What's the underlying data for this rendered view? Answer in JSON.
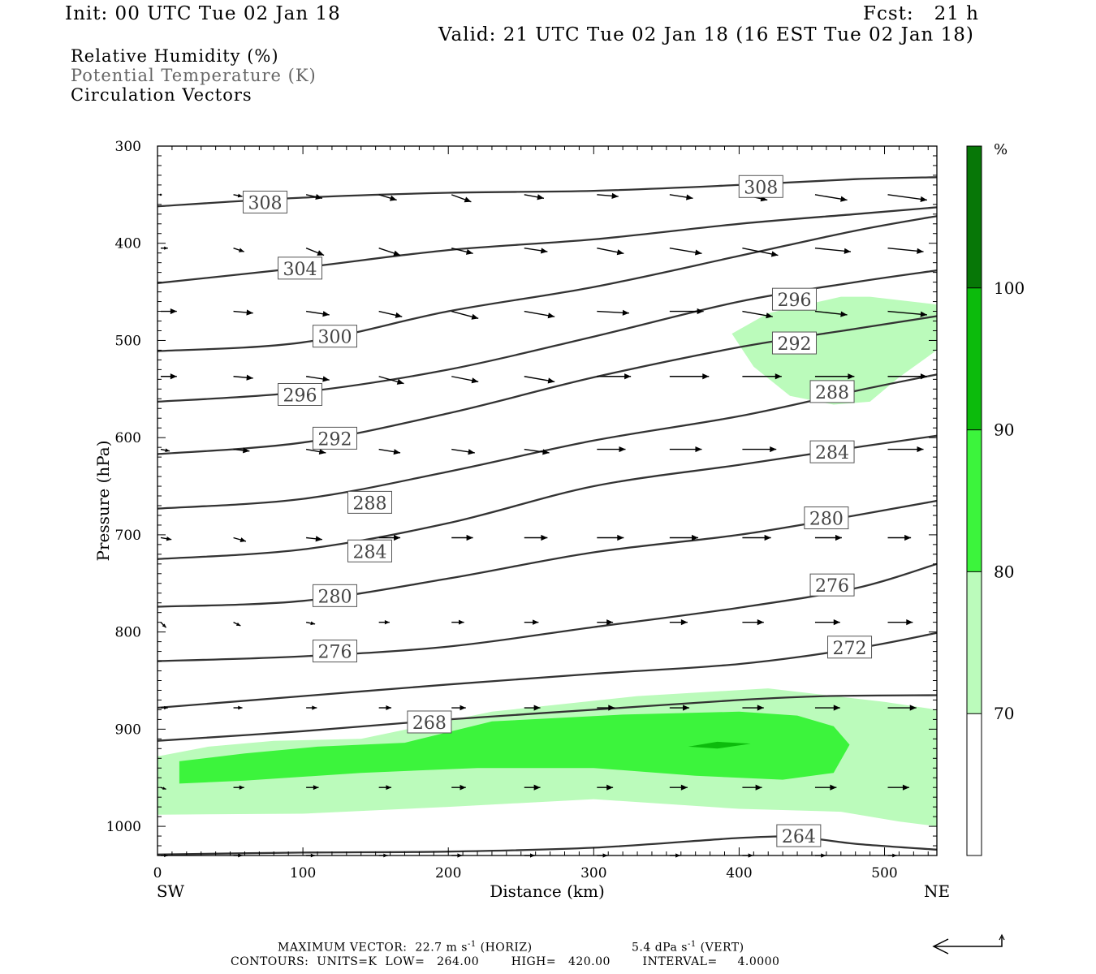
{
  "header": {
    "init": "Init: 00 UTC Tue 02 Jan 18",
    "fcst": "Fcst:   21 h",
    "valid": "Valid: 21 UTC Tue 02 Jan 18 (16 EST Tue 02 Jan 18)"
  },
  "legend": {
    "rh": "Relative Humidity (%)",
    "theta": "Potential Temperature (K)",
    "vectors": "Circulation Vectors"
  },
  "footer": {
    "max_vector_label": "MAXIMUM VECTOR:",
    "horiz_value": "22.7 m s",
    "horiz_label": "(HORIZ)",
    "vert_value": "5.4 dPa s",
    "vert_label": "(VERT)",
    "exp": "-1",
    "contours": "CONTOURS:  UNITS=K  LOW=   264.00        HIGH=   420.00        INTERVAL=     4.0000"
  },
  "colors": {
    "rh70": "#bbfbbb",
    "rh80": "#3cf43c",
    "rh90": "#0cbb0c",
    "rh100": "#077707",
    "contour": "#333333",
    "label_text": "#444444"
  },
  "chart_data": {
    "type": "cross-section",
    "xlabel": "Distance (km)",
    "ylabel": "Pressure (hPa)",
    "xlim": [
      0,
      536
    ],
    "ylim": [
      1030,
      300
    ],
    "x_ticks": [
      0,
      100,
      200,
      300,
      400,
      500
    ],
    "y_ticks": [
      300,
      400,
      500,
      600,
      700,
      800,
      900,
      1000
    ],
    "x_end_labels": {
      "left": "SW",
      "right": "NE"
    },
    "colorbar": {
      "unit": "%",
      "levels": [
        70,
        80,
        90,
        100
      ],
      "colors": [
        "#bbfbbb",
        "#3cf43c",
        "#0cbb0c",
        "#077707"
      ]
    },
    "isentropes": [
      {
        "value": 264,
        "points": [
          [
            0,
            1029
          ],
          [
            100,
            1027
          ],
          [
            200,
            1026
          ],
          [
            300,
            1022
          ],
          [
            400,
            1012
          ],
          [
            440,
            1011
          ],
          [
            480,
            1018
          ],
          [
            536,
            1024
          ]
        ],
        "labels": [
          [
            441,
            1010
          ]
        ]
      },
      {
        "value": 268,
        "points": [
          [
            0,
            912
          ],
          [
            100,
            902
          ],
          [
            200,
            890
          ],
          [
            300,
            880
          ],
          [
            400,
            870
          ],
          [
            460,
            866
          ],
          [
            536,
            865
          ]
        ],
        "labels": [
          [
            187,
            893
          ]
        ]
      },
      {
        "value": 272,
        "points": [
          [
            0,
            878
          ],
          [
            100,
            866
          ],
          [
            200,
            854
          ],
          [
            300,
            843
          ],
          [
            400,
            833
          ],
          [
            480,
            817
          ],
          [
            536,
            801
          ]
        ],
        "labels": [
          [
            476,
            816
          ]
        ]
      },
      {
        "value": 276,
        "points": [
          [
            0,
            830
          ],
          [
            100,
            825
          ],
          [
            200,
            815
          ],
          [
            300,
            795
          ],
          [
            400,
            775
          ],
          [
            480,
            755
          ],
          [
            536,
            730
          ]
        ],
        "labels": [
          [
            122,
            820
          ],
          [
            464,
            752
          ]
        ]
      },
      {
        "value": 280,
        "points": [
          [
            0,
            774
          ],
          [
            100,
            768
          ],
          [
            200,
            745
          ],
          [
            300,
            718
          ],
          [
            400,
            700
          ],
          [
            480,
            680
          ],
          [
            536,
            665
          ]
        ],
        "labels": [
          [
            122,
            763
          ],
          [
            460,
            683
          ]
        ]
      },
      {
        "value": 284,
        "points": [
          [
            0,
            725
          ],
          [
            100,
            715
          ],
          [
            200,
            688
          ],
          [
            300,
            650
          ],
          [
            400,
            628
          ],
          [
            480,
            610
          ],
          [
            536,
            598
          ]
        ],
        "labels": [
          [
            146,
            717
          ],
          [
            464,
            615
          ]
        ]
      },
      {
        "value": 288,
        "points": [
          [
            0,
            673
          ],
          [
            100,
            663
          ],
          [
            200,
            635
          ],
          [
            300,
            603
          ],
          [
            400,
            578
          ],
          [
            480,
            552
          ],
          [
            536,
            535
          ]
        ],
        "labels": [
          [
            146,
            667
          ],
          [
            464,
            553
          ]
        ]
      },
      {
        "value": 292,
        "points": [
          [
            0,
            617
          ],
          [
            100,
            605
          ],
          [
            200,
            575
          ],
          [
            300,
            538
          ],
          [
            400,
            507
          ],
          [
            480,
            488
          ],
          [
            536,
            475
          ]
        ],
        "labels": [
          [
            122,
            601
          ],
          [
            438,
            503
          ]
        ]
      },
      {
        "value": 296,
        "points": [
          [
            0,
            563
          ],
          [
            100,
            553
          ],
          [
            200,
            530
          ],
          [
            300,
            496
          ],
          [
            400,
            460
          ],
          [
            480,
            440
          ],
          [
            536,
            428
          ]
        ],
        "labels": [
          [
            98,
            556
          ],
          [
            438,
            458
          ]
        ]
      },
      {
        "value": 300,
        "points": [
          [
            0,
            511
          ],
          [
            100,
            502
          ],
          [
            200,
            470
          ],
          [
            300,
            445
          ],
          [
            400,
            413
          ],
          [
            480,
            387
          ],
          [
            536,
            372
          ]
        ],
        "labels": [
          [
            122,
            496
          ]
        ]
      },
      {
        "value": 304,
        "points": [
          [
            0,
            441
          ],
          [
            100,
            425
          ],
          [
            200,
            407
          ],
          [
            300,
            396
          ],
          [
            400,
            380
          ],
          [
            480,
            370
          ],
          [
            536,
            363
          ]
        ],
        "labels": [
          [
            98,
            426
          ]
        ]
      },
      {
        "value": 308,
        "points": [
          [
            0,
            362
          ],
          [
            100,
            353
          ],
          [
            200,
            348
          ],
          [
            300,
            346
          ],
          [
            400,
            340
          ],
          [
            480,
            334
          ],
          [
            536,
            332
          ]
        ],
        "labels": [
          [
            74,
            358
          ],
          [
            415,
            342
          ]
        ]
      }
    ],
    "rh_regions": [
      {
        "level": 70,
        "points": [
          [
            0,
            928
          ],
          [
            35,
            918
          ],
          [
            80,
            912
          ],
          [
            140,
            910
          ],
          [
            230,
            882
          ],
          [
            330,
            866
          ],
          [
            420,
            858
          ],
          [
            500,
            872
          ],
          [
            536,
            880
          ],
          [
            536,
            1000
          ],
          [
            510,
            995
          ],
          [
            470,
            985
          ],
          [
            400,
            982
          ],
          [
            300,
            972
          ],
          [
            200,
            980
          ],
          [
            100,
            987
          ],
          [
            0,
            988
          ]
        ]
      },
      {
        "level": 80,
        "points": [
          [
            15,
            933
          ],
          [
            60,
            925
          ],
          [
            110,
            918
          ],
          [
            170,
            914
          ],
          [
            230,
            892
          ],
          [
            320,
            885
          ],
          [
            400,
            882
          ],
          [
            440,
            886
          ],
          [
            465,
            897
          ],
          [
            476,
            916
          ],
          [
            465,
            945
          ],
          [
            430,
            952
          ],
          [
            370,
            948
          ],
          [
            300,
            940
          ],
          [
            220,
            940
          ],
          [
            140,
            945
          ],
          [
            60,
            953
          ],
          [
            15,
            956
          ]
        ]
      },
      {
        "level": 70,
        "points": [
          [
            395,
            493
          ],
          [
            420,
            472
          ],
          [
            470,
            455
          ],
          [
            490,
            455
          ],
          [
            536,
            463
          ],
          [
            536,
            510
          ],
          [
            510,
            538
          ],
          [
            490,
            563
          ],
          [
            465,
            566
          ],
          [
            435,
            557
          ],
          [
            410,
            527
          ]
        ]
      },
      {
        "level": 90,
        "points": [
          [
            365,
            918
          ],
          [
            385,
            913
          ],
          [
            408,
            915
          ],
          [
            385,
            920
          ]
        ]
      }
    ],
    "vectors": [
      [
        0,
        350,
        0,
        0
      ],
      [
        50,
        350,
        5,
        1
      ],
      [
        100,
        350,
        9,
        2
      ],
      [
        150,
        350,
        10,
        3
      ],
      [
        200,
        350,
        11,
        4
      ],
      [
        250,
        350,
        11,
        2
      ],
      [
        300,
        350,
        12,
        1
      ],
      [
        350,
        350,
        13,
        2
      ],
      [
        400,
        350,
        14,
        3
      ],
      [
        450,
        350,
        18,
        3
      ],
      [
        500,
        350,
        22,
        3
      ],
      [
        0,
        405,
        4,
        0
      ],
      [
        50,
        405,
        6,
        2
      ],
      [
        100,
        405,
        10,
        4
      ],
      [
        150,
        405,
        12,
        4
      ],
      [
        200,
        405,
        12,
        3
      ],
      [
        250,
        405,
        13,
        2
      ],
      [
        300,
        405,
        15,
        3
      ],
      [
        350,
        405,
        18,
        3
      ],
      [
        400,
        405,
        20,
        4
      ],
      [
        450,
        405,
        20,
        2
      ],
      [
        500,
        405,
        20,
        2
      ],
      [
        0,
        470,
        9,
        0
      ],
      [
        50,
        470,
        11,
        1
      ],
      [
        100,
        470,
        13,
        2
      ],
      [
        150,
        470,
        13,
        3
      ],
      [
        200,
        470,
        15,
        4
      ],
      [
        250,
        470,
        17,
        3
      ],
      [
        300,
        470,
        18,
        1
      ],
      [
        350,
        470,
        19,
        0
      ],
      [
        400,
        470,
        17,
        3
      ],
      [
        450,
        470,
        18,
        2
      ],
      [
        500,
        470,
        22,
        2
      ],
      [
        0,
        537,
        9,
        0
      ],
      [
        50,
        537,
        11,
        1
      ],
      [
        100,
        537,
        13,
        2
      ],
      [
        150,
        537,
        14,
        4
      ],
      [
        200,
        537,
        15,
        3
      ],
      [
        250,
        537,
        17,
        3
      ],
      [
        300,
        537,
        19,
        0
      ],
      [
        350,
        537,
        22,
        0
      ],
      [
        400,
        537,
        22,
        0
      ],
      [
        450,
        537,
        22,
        0
      ],
      [
        500,
        537,
        22,
        0
      ],
      [
        0,
        612,
        5,
        1
      ],
      [
        50,
        612,
        9,
        1
      ],
      [
        100,
        612,
        11,
        2
      ],
      [
        150,
        612,
        12,
        2
      ],
      [
        200,
        612,
        13,
        2
      ],
      [
        250,
        612,
        14,
        2
      ],
      [
        300,
        612,
        16,
        0
      ],
      [
        350,
        612,
        18,
        0
      ],
      [
        400,
        612,
        19,
        0
      ],
      [
        450,
        612,
        20,
        0
      ],
      [
        500,
        612,
        20,
        0
      ],
      [
        0,
        703,
        6,
        1
      ],
      [
        50,
        703,
        7,
        2
      ],
      [
        100,
        703,
        9,
        1
      ],
      [
        150,
        703,
        12,
        0
      ],
      [
        200,
        703,
        12,
        0
      ],
      [
        250,
        703,
        13,
        0
      ],
      [
        300,
        703,
        15,
        0
      ],
      [
        350,
        703,
        16,
        0
      ],
      [
        400,
        703,
        16,
        0
      ],
      [
        450,
        703,
        15,
        0
      ],
      [
        500,
        703,
        13,
        0
      ],
      [
        0,
        790,
        3,
        3
      ],
      [
        50,
        790,
        4,
        2
      ],
      [
        100,
        790,
        5,
        1
      ],
      [
        150,
        790,
        6,
        0
      ],
      [
        200,
        790,
        7,
        0
      ],
      [
        250,
        790,
        8,
        0
      ],
      [
        300,
        790,
        9,
        0
      ],
      [
        350,
        790,
        10,
        0
      ],
      [
        400,
        790,
        12,
        0
      ],
      [
        450,
        790,
        14,
        0
      ],
      [
        500,
        790,
        14,
        0
      ],
      [
        0,
        878,
        4,
        0
      ],
      [
        50,
        878,
        5,
        0
      ],
      [
        100,
        878,
        6,
        0
      ],
      [
        150,
        878,
        7,
        0
      ],
      [
        200,
        878,
        8,
        0
      ],
      [
        250,
        878,
        9,
        0
      ],
      [
        300,
        878,
        10,
        0
      ],
      [
        350,
        878,
        11,
        0
      ],
      [
        400,
        878,
        12,
        0
      ],
      [
        450,
        878,
        14,
        0
      ],
      [
        500,
        878,
        16,
        0
      ],
      [
        0,
        960,
        3,
        1
      ],
      [
        50,
        960,
        6,
        0
      ],
      [
        100,
        960,
        7,
        0
      ],
      [
        150,
        960,
        7,
        0
      ],
      [
        200,
        960,
        8,
        0
      ],
      [
        250,
        960,
        9,
        0
      ],
      [
        300,
        960,
        9,
        0
      ],
      [
        350,
        960,
        10,
        0
      ],
      [
        400,
        960,
        11,
        0
      ],
      [
        450,
        960,
        12,
        0
      ],
      [
        500,
        960,
        12,
        0
      ],
      [
        0,
        1030,
        4,
        0
      ],
      [
        50,
        1030,
        5,
        0
      ],
      [
        100,
        1030,
        5,
        0
      ],
      [
        150,
        1030,
        5,
        0
      ],
      [
        200,
        1030,
        6,
        0
      ],
      [
        250,
        1030,
        6,
        0
      ],
      [
        300,
        1030,
        6,
        0
      ],
      [
        350,
        1030,
        6,
        0
      ],
      [
        400,
        1030,
        6,
        0
      ],
      [
        450,
        1030,
        6,
        0
      ],
      [
        500,
        1030,
        5,
        0
      ]
    ]
  }
}
